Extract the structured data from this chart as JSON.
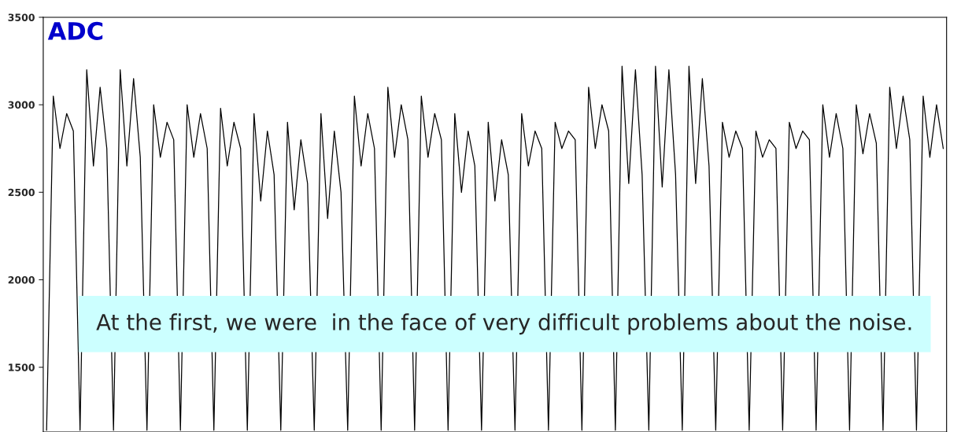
{
  "chart_data": {
    "type": "line",
    "title": "ADC",
    "categories": [
      null,
      null,
      null,
      null,
      null,
      null,
      null,
      null,
      null,
      null,
      null,
      null,
      null,
      null,
      null,
      null,
      null,
      null,
      null,
      null,
      null,
      null,
      null,
      null,
      null,
      null,
      null,
      null,
      null,
      null,
      null,
      null,
      null,
      null,
      null,
      null,
      null,
      null,
      null,
      null,
      null,
      null,
      null,
      null,
      null,
      null,
      null,
      null,
      null,
      null,
      null,
      null,
      null,
      null,
      null,
      null,
      null,
      null,
      null,
      null,
      null,
      null,
      null,
      null,
      null,
      null,
      null,
      null,
      null,
      null,
      null,
      null,
      null,
      null,
      null,
      null,
      null,
      null,
      null,
      null,
      null,
      null,
      null,
      null,
      null,
      null,
      null,
      null,
      null,
      null,
      null,
      null,
      null,
      null,
      null,
      null,
      null,
      null,
      null,
      null,
      null,
      null,
      null,
      null,
      null,
      null,
      null,
      null,
      null,
      null,
      null,
      null,
      null,
      null,
      null,
      null,
      null,
      null,
      null,
      null,
      null,
      null,
      null,
      null,
      null,
      null,
      null,
      null,
      null,
      null,
      null,
      null,
      null,
      null,
      null
    ],
    "series": [
      {
        "color": "#000000",
        "values": [
          1140,
          3050,
          2750,
          2950,
          2850,
          1140,
          3200,
          2650,
          3100,
          2750,
          1140,
          3200,
          2650,
          3150,
          2700,
          1140,
          3000,
          2700,
          2900,
          2800,
          1140,
          3000,
          2700,
          2950,
          2750,
          1140,
          2980,
          2650,
          2900,
          2750,
          1140,
          2950,
          2450,
          2850,
          2600,
          1140,
          2900,
          2400,
          2800,
          2550,
          1140,
          2950,
          2350,
          2850,
          2500,
          1140,
          3050,
          2650,
          2950,
          2750,
          1140,
          3100,
          2700,
          3000,
          2800,
          1140,
          3050,
          2700,
          2950,
          2800,
          1140,
          2950,
          2500,
          2850,
          2650,
          1140,
          2900,
          2450,
          2800,
          2600,
          1140,
          2950,
          2650,
          2850,
          2750,
          1140,
          2900,
          2750,
          2850,
          2800,
          1140,
          3100,
          2750,
          3000,
          2850,
          1140,
          3220,
          2550,
          3200,
          2600,
          1140,
          3220,
          2530,
          3200,
          2600,
          1140,
          3220,
          2550,
          3150,
          2650,
          1140,
          2900,
          2700,
          2850,
          2750,
          1140,
          2850,
          2700,
          2800,
          2750,
          1140,
          2900,
          2750,
          2850,
          2800,
          1140,
          3000,
          2700,
          2950,
          2750,
          1140,
          3000,
          2720,
          2950,
          2780,
          1140,
          3100,
          2750,
          3050,
          2800,
          1140,
          3050,
          2700,
          3000,
          2750
        ]
      }
    ],
    "ylim": [
      1130,
      3500
    ],
    "yticks": [
      1500,
      2000,
      2500,
      3000,
      3500
    ],
    "tick_labels": "y",
    "grid": false,
    "legend": false,
    "annotations": [
      "At the first, we were  in the face of very difficult problems about the noise."
    ]
  }
}
